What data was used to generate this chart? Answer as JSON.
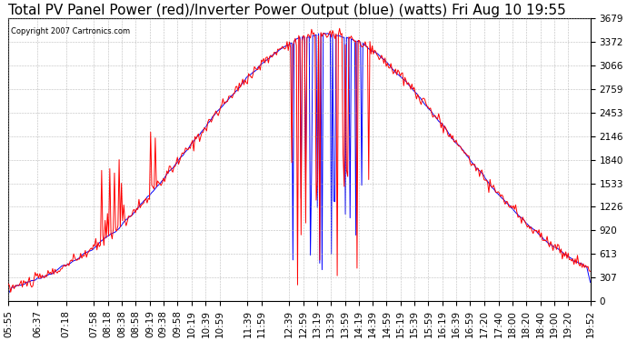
{
  "title": "Total PV Panel Power (red)/Inverter Power Output (blue) (watts) Fri Aug 10 19:55",
  "copyright": "Copyright 2007 Cartronics.com",
  "yticks": [
    0.0,
    306.6,
    613.2,
    919.8,
    1226.3,
    1532.9,
    1839.5,
    2146.1,
    2452.7,
    2759.3,
    3065.8,
    3372.4,
    3679.0
  ],
  "xtick_labels": [
    "05:55",
    "06:37",
    "07:18",
    "07:58",
    "08:18",
    "08:38",
    "08:58",
    "09:19",
    "09:38",
    "09:58",
    "10:19",
    "10:39",
    "10:59",
    "11:39",
    "11:59",
    "12:39",
    "12:59",
    "13:19",
    "13:39",
    "13:59",
    "14:19",
    "14:39",
    "14:59",
    "15:19",
    "15:39",
    "15:59",
    "16:19",
    "16:39",
    "16:59",
    "17:20",
    "17:40",
    "18:00",
    "18:20",
    "18:40",
    "19:00",
    "19:20",
    "19:52"
  ],
  "ymax": 3679.0,
  "ymin": 0.0,
  "bg_color": "#ffffff",
  "grid_color": "#aaaaaa",
  "line_red": "#ff0000",
  "line_blue": "#0000ff",
  "title_fontsize": 11,
  "tick_fontsize": 7.5
}
